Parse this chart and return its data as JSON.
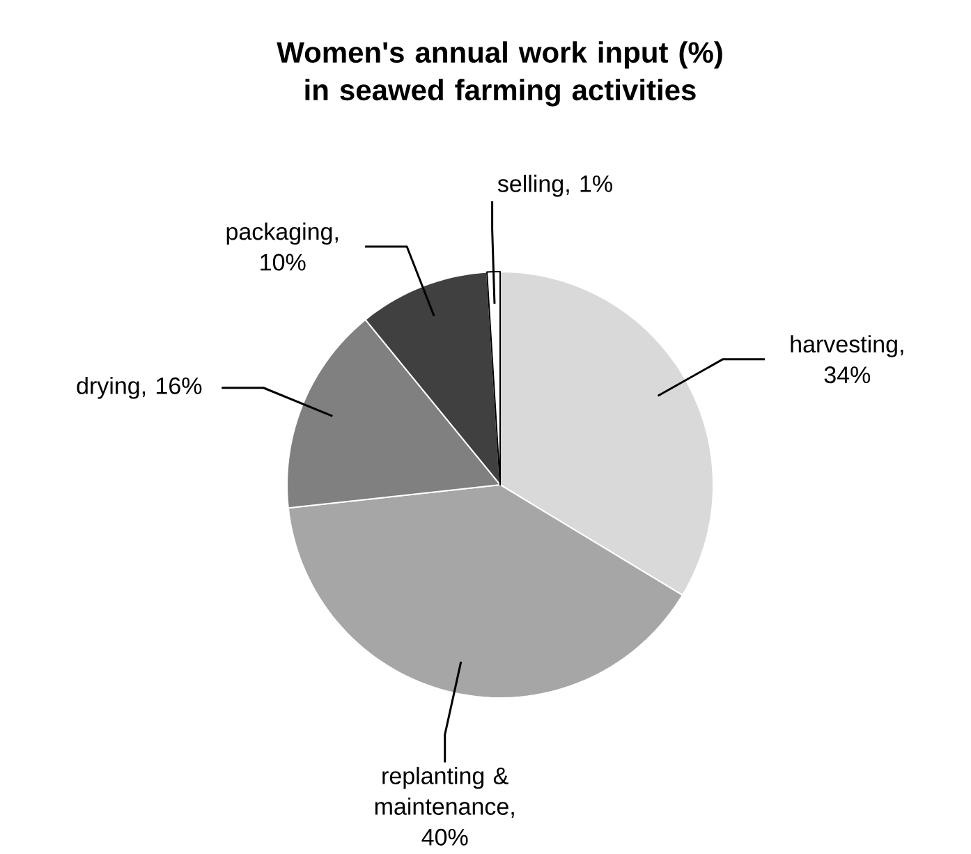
{
  "chart_data": {
    "type": "pie",
    "title": "Women's annual work input (%)  in seawed farming activities",
    "categories": [
      "harvesting",
      "replanting & maintenance",
      "drying",
      "packaging",
      "selling"
    ],
    "values": [
      34,
      40,
      16,
      10,
      1
    ],
    "value_labels": [
      ", 34%",
      ", 40%",
      ", 16%",
      ", 10%",
      ", 1%"
    ],
    "colors": [
      "#d9d9d9",
      "#a6a6a6",
      "#808080",
      "#404040",
      "#ffffff"
    ]
  }
}
